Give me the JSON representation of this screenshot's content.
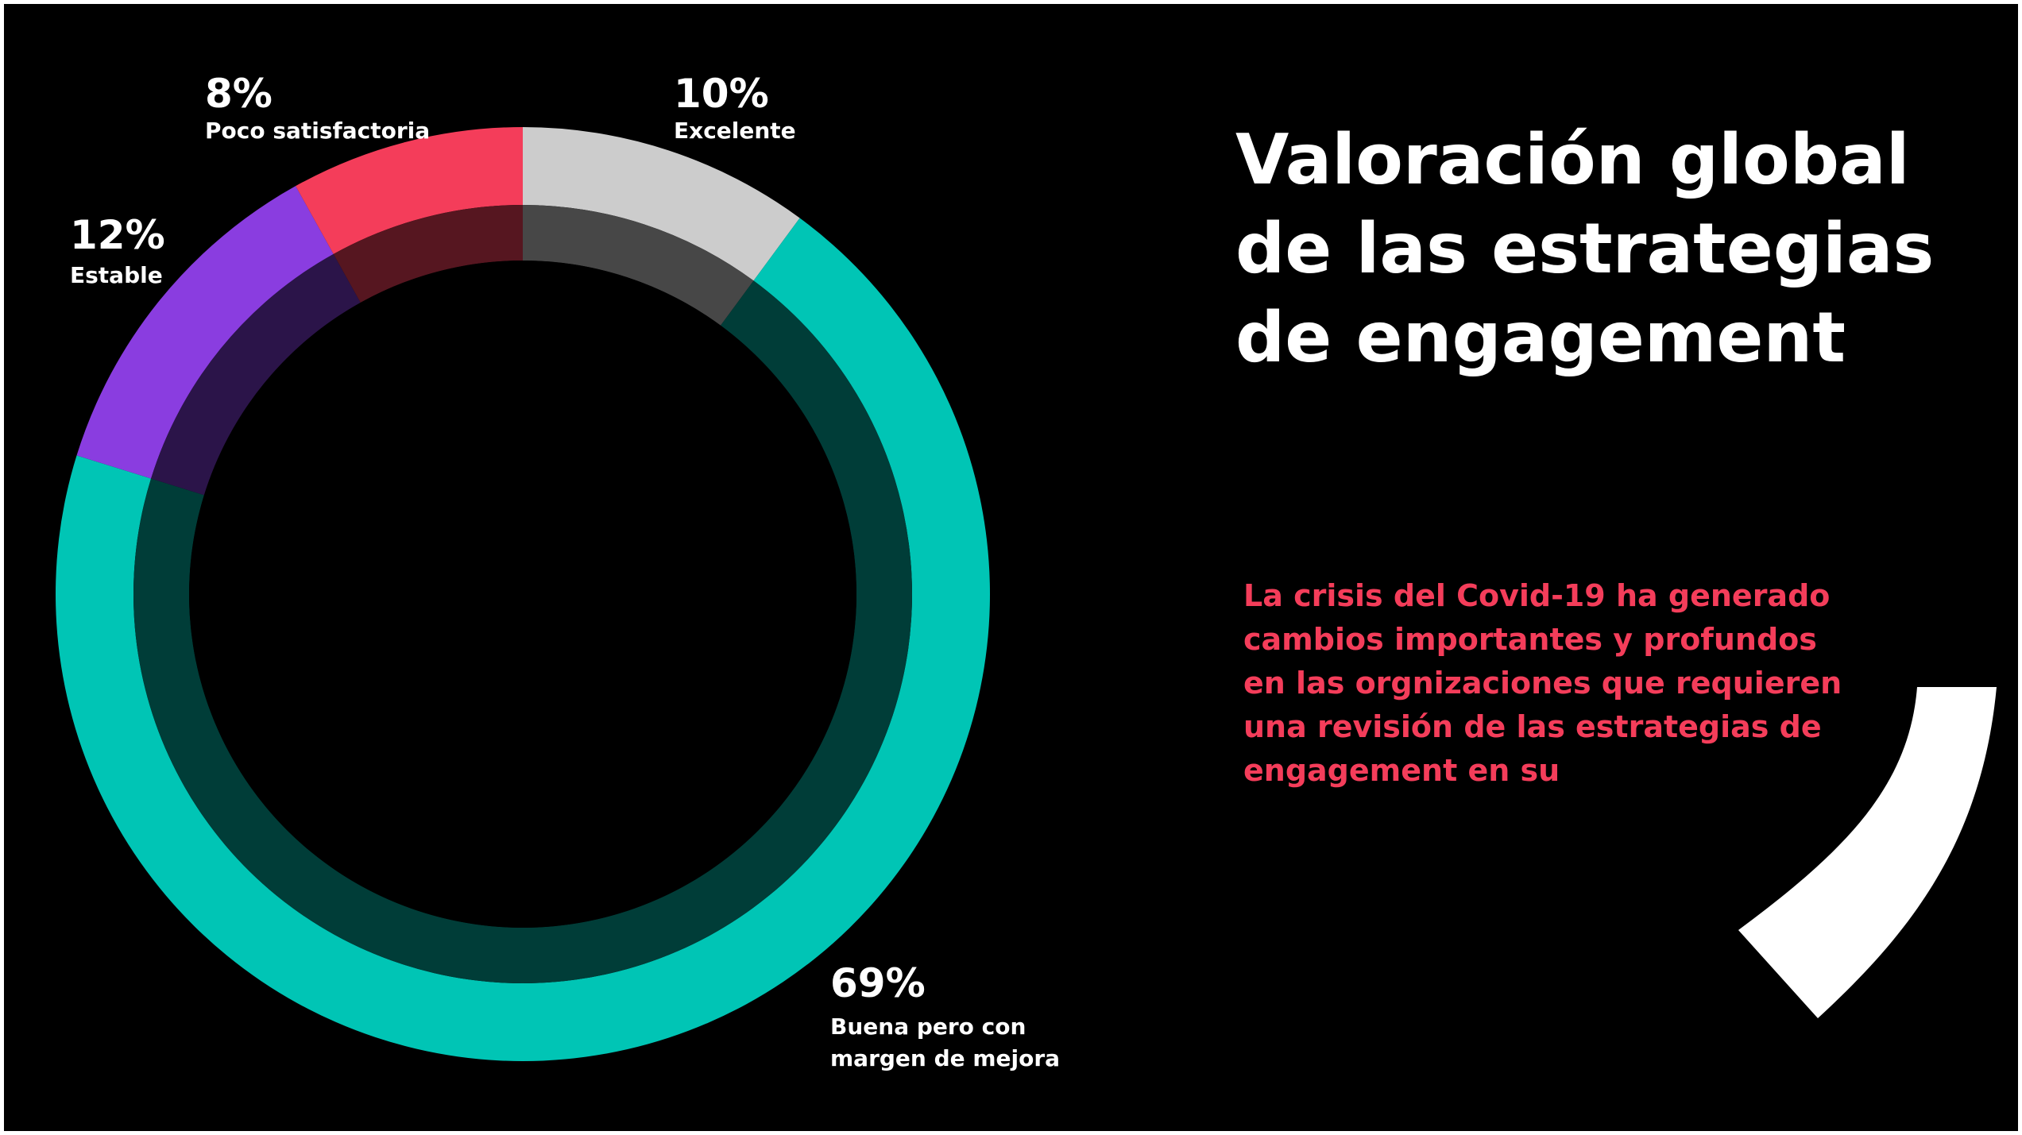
{
  "chart_data": {
    "type": "pie",
    "subtype": "donut",
    "title": "Valoración global de las estrategias de engagement",
    "categories": [
      "Excelente",
      "Buena pero con margen de mejora",
      "Estable",
      "Poco satisfactoria"
    ],
    "values": [
      10,
      69,
      12,
      8
    ],
    "value_labels": [
      "10%",
      "69%",
      "12%",
      "8%"
    ],
    "label_lines": [
      [
        "Excelente"
      ],
      [
        "Buena pero con",
        "margen de mejora"
      ],
      [
        "Estable"
      ],
      [
        "Poco satisfactoria"
      ]
    ],
    "colors": [
      "#cccccc",
      "#00c5b5",
      "#8a3de0",
      "#f43d5a"
    ],
    "inner_colors": [
      "#474747",
      "#003d38",
      "#2b1449",
      "#561620"
    ],
    "start_angle_deg": 0,
    "direction": "clockwise"
  },
  "text": {
    "description": "La crisis del Covid-19 ha generado cambios importantes y profundos en las orgnizaciones que requieren una revisión de las estrategias de engagement en su"
  },
  "colors": {
    "background": "#000000",
    "accent": "#f43d5a",
    "decoration": "#ffffff"
  }
}
